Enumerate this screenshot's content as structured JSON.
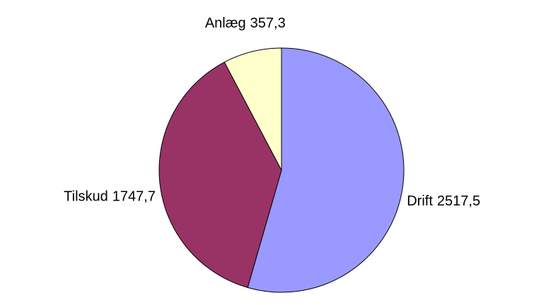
{
  "chart_data": {
    "type": "pie",
    "categories": [
      "Drift",
      "Tilskud",
      "Anlæg"
    ],
    "values": [
      2517.5,
      1747.7,
      357.3
    ],
    "value_labels": [
      "2517,5",
      "1747,7",
      "357,3"
    ],
    "colors": [
      "#9999ff",
      "#993366",
      "#ffffcc"
    ]
  }
}
